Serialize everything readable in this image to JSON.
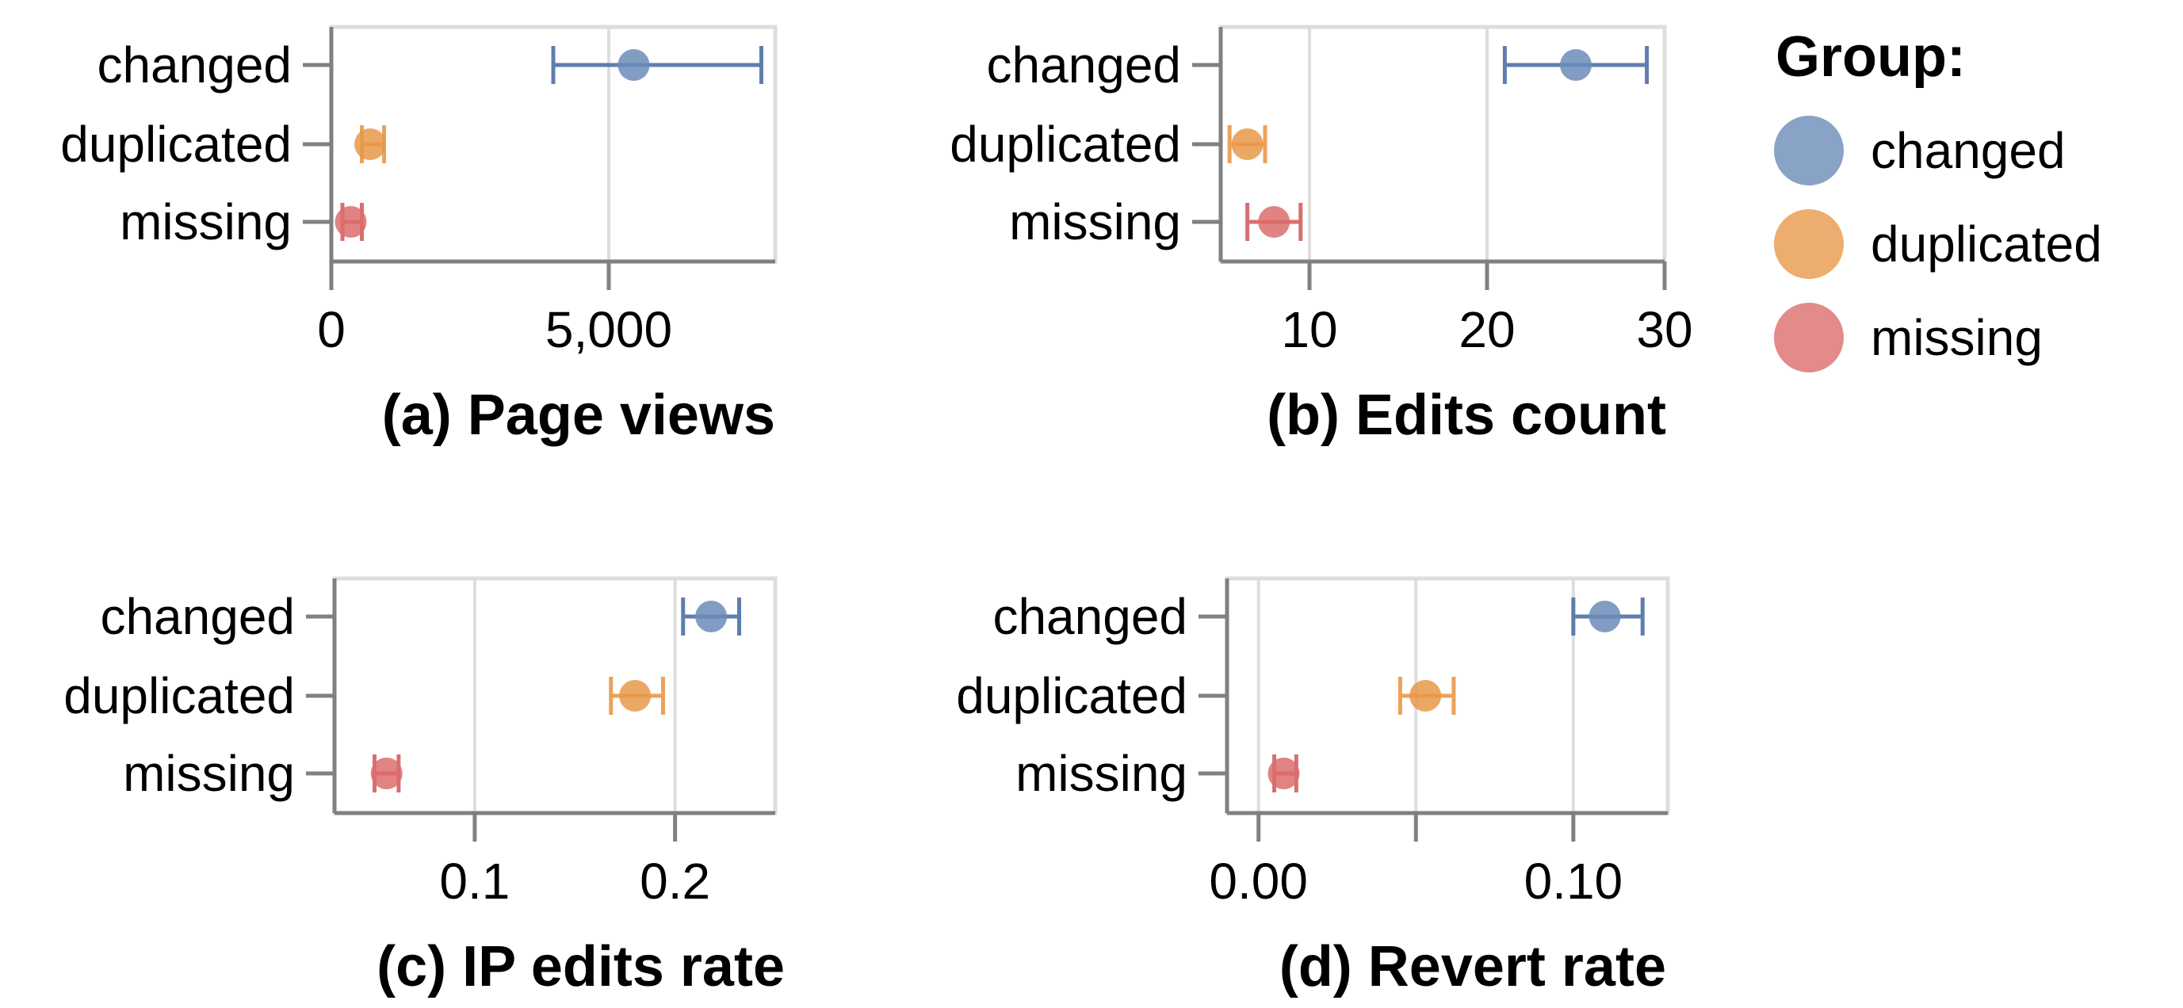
{
  "chart_data": [
    {
      "type": "scatter",
      "title": "(a) Page views",
      "xlabel": "(a) Page views",
      "ylabel": "",
      "xlim": [
        0,
        8000
      ],
      "x_ticks": [
        0,
        5000
      ],
      "x_tick_labels": [
        "0",
        "5,000"
      ],
      "grid": true,
      "categories": [
        "changed",
        "duplicated",
        "missing"
      ],
      "series": [
        {
          "name": "changed",
          "values": [
            5450
          ],
          "ci_low": [
            4000
          ],
          "ci_high": [
            7750
          ]
        },
        {
          "name": "duplicated",
          "values": [
            700
          ],
          "ci_low": [
            550
          ],
          "ci_high": [
            950
          ]
        },
        {
          "name": "missing",
          "values": [
            350
          ],
          "ci_low": [
            200
          ],
          "ci_high": [
            550
          ]
        }
      ]
    },
    {
      "type": "scatter",
      "title": "(b) Edits count",
      "xlabel": "(b) Edits count",
      "ylabel": "",
      "xlim": [
        5,
        30
      ],
      "x_ticks": [
        10,
        20,
        30
      ],
      "x_tick_labels": [
        "10",
        "20",
        "30"
      ],
      "grid": true,
      "categories": [
        "changed",
        "duplicated",
        "missing"
      ],
      "series": [
        {
          "name": "changed",
          "values": [
            25
          ],
          "ci_low": [
            21
          ],
          "ci_high": [
            29
          ]
        },
        {
          "name": "duplicated",
          "values": [
            6.5
          ],
          "ci_low": [
            5.5
          ],
          "ci_high": [
            7.5
          ]
        },
        {
          "name": "missing",
          "values": [
            8
          ],
          "ci_low": [
            6.5
          ],
          "ci_high": [
            9.5
          ]
        }
      ]
    },
    {
      "type": "scatter",
      "title": "(c) IP edits rate",
      "xlabel": "(c) IP edits rate",
      "ylabel": "",
      "xlim": [
        0.03,
        0.25
      ],
      "x_ticks": [
        0.1,
        0.2
      ],
      "x_tick_labels": [
        "0.1",
        "0.2"
      ],
      "grid": true,
      "categories": [
        "changed",
        "duplicated",
        "missing"
      ],
      "series": [
        {
          "name": "changed",
          "values": [
            0.218
          ],
          "ci_low": [
            0.204
          ],
          "ci_high": [
            0.232
          ]
        },
        {
          "name": "duplicated",
          "values": [
            0.18
          ],
          "ci_low": [
            0.168
          ],
          "ci_high": [
            0.194
          ]
        },
        {
          "name": "missing",
          "values": [
            0.056
          ],
          "ci_low": [
            0.05
          ],
          "ci_high": [
            0.062
          ]
        }
      ]
    },
    {
      "type": "scatter",
      "title": "(d) Revert rate",
      "xlabel": "(d) Revert rate",
      "ylabel": "",
      "xlim": [
        -0.01,
        0.13
      ],
      "x_ticks": [
        0.0,
        0.05,
        0.1
      ],
      "x_tick_labels": [
        "0.00",
        "",
        "0.10"
      ],
      "grid": true,
      "categories": [
        "changed",
        "duplicated",
        "missing"
      ],
      "series": [
        {
          "name": "changed",
          "values": [
            0.11
          ],
          "ci_low": [
            0.1
          ],
          "ci_high": [
            0.122
          ]
        },
        {
          "name": "duplicated",
          "values": [
            0.053
          ],
          "ci_low": [
            0.045
          ],
          "ci_high": [
            0.062
          ]
        },
        {
          "name": "missing",
          "values": [
            0.008
          ],
          "ci_low": [
            0.005
          ],
          "ci_high": [
            0.012
          ]
        }
      ]
    }
  ],
  "legend": {
    "title": "Group:",
    "placement": "top-right",
    "items": [
      {
        "label": "changed",
        "color": "#6b8cb8"
      },
      {
        "label": "duplicated",
        "color": "#e8994a"
      },
      {
        "label": "missing",
        "color": "#dc6d6d"
      }
    ]
  },
  "colors": {
    "changed": "#6b8cb8",
    "duplicated": "#e8994a",
    "missing": "#dc6d6d",
    "changed_bar": "#4e71a6",
    "duplicated_bar": "#e8994a",
    "missing_bar": "#d65f5f",
    "axis": "#808080",
    "grid": "#dddddd",
    "frame": "#dddddd"
  }
}
